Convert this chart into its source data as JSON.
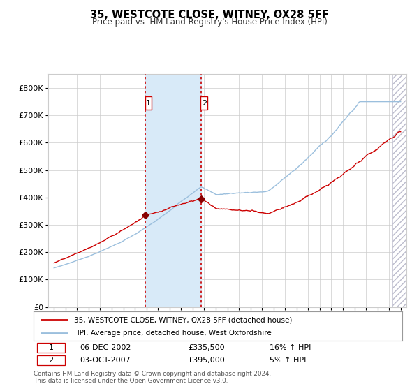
{
  "title": "35, WESTCOTE CLOSE, WITNEY, OX28 5FF",
  "subtitle": "Price paid vs. HM Land Registry's House Price Index (HPI)",
  "legend_line1": "35, WESTCOTE CLOSE, WITNEY, OX28 5FF (detached house)",
  "legend_line2": "HPI: Average price, detached house, West Oxfordshire",
  "transaction1_date": "06-DEC-2002",
  "transaction1_price": 335500,
  "transaction1_hpi": "16% ↑ HPI",
  "transaction1_year": 2002.92,
  "transaction2_date": "03-OCT-2007",
  "transaction2_price": 395000,
  "transaction2_hpi": "5% ↑ HPI",
  "transaction2_year": 2007.75,
  "footer": "Contains HM Land Registry data © Crown copyright and database right 2024.\nThis data is licensed under the Open Government Licence v3.0.",
  "hpi_color": "#9bbfdd",
  "price_color": "#cc0000",
  "marker_color": "#880000",
  "bg_color": "#ffffff",
  "grid_color": "#cccccc",
  "shade_color": "#d8eaf8",
  "ylim_min": 0,
  "ylim_max": 850000,
  "xmin": 1994.5,
  "xmax": 2025.5,
  "hatch_start": 2024.3
}
